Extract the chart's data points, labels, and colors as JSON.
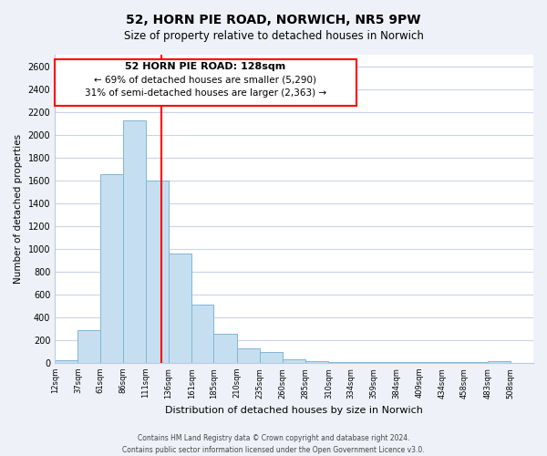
{
  "title": "52, HORN PIE ROAD, NORWICH, NR5 9PW",
  "subtitle": "Size of property relative to detached houses in Norwich",
  "xlabel": "Distribution of detached houses by size in Norwich",
  "ylabel": "Number of detached properties",
  "bar_left_edges": [
    12,
    37,
    61,
    86,
    111,
    136,
    161,
    185,
    210,
    235,
    260,
    285,
    310,
    334,
    359,
    384,
    409,
    434,
    458,
    483
  ],
  "bar_widths": [
    25,
    24,
    25,
    25,
    25,
    25,
    24,
    25,
    25,
    25,
    25,
    25,
    24,
    25,
    25,
    25,
    25,
    24,
    25,
    25
  ],
  "bar_heights": [
    20,
    290,
    1650,
    2125,
    1600,
    960,
    510,
    255,
    125,
    95,
    30,
    12,
    5,
    5,
    4,
    4,
    4,
    4,
    4,
    15
  ],
  "bar_color": "#c6dff0",
  "bar_edge_color": "#7fb5d5",
  "vline_x": 128,
  "vline_color": "red",
  "ylim": [
    0,
    2700
  ],
  "yticks": [
    0,
    200,
    400,
    600,
    800,
    1000,
    1200,
    1400,
    1600,
    1800,
    2000,
    2200,
    2400,
    2600
  ],
  "xlim_min": 12,
  "xlim_max": 533,
  "xtick_labels": [
    "12sqm",
    "37sqm",
    "61sqm",
    "86sqm",
    "111sqm",
    "136sqm",
    "161sqm",
    "185sqm",
    "210sqm",
    "235sqm",
    "260sqm",
    "285sqm",
    "310sqm",
    "334sqm",
    "359sqm",
    "384sqm",
    "409sqm",
    "434sqm",
    "458sqm",
    "483sqm",
    "508sqm"
  ],
  "xtick_positions": [
    12,
    37,
    61,
    86,
    111,
    136,
    161,
    185,
    210,
    235,
    260,
    285,
    310,
    334,
    359,
    384,
    409,
    434,
    458,
    483,
    508
  ],
  "annotation_title": "52 HORN PIE ROAD: 128sqm",
  "annotation_line1": "← 69% of detached houses are smaller (5,290)",
  "annotation_line2": "31% of semi-detached houses are larger (2,363) →",
  "footer_line1": "Contains HM Land Registry data © Crown copyright and database right 2024.",
  "footer_line2": "Contains public sector information licensed under the Open Government Licence v3.0.",
  "bg_color": "#eef2f8",
  "plot_bg_color": "#ffffff",
  "grid_color": "#c8d4e8"
}
